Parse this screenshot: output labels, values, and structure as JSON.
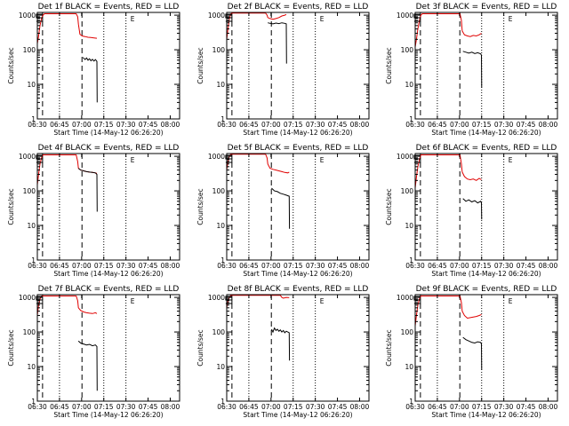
{
  "chart_data": {
    "type": "line",
    "xlabel": "Start Time (14-May-12 06:26:20)",
    "ylabel": "Counts/sec",
    "x_ticks": [
      "06:30",
      "06:45",
      "07:00",
      "07:15",
      "07:30",
      "07:45",
      "08:00"
    ],
    "x_range_min": [
      3.667,
      100
    ],
    "y_ticks": [
      "1",
      "10",
      "100",
      "1000"
    ],
    "y_scale": "log",
    "ylim": [
      1,
      1200
    ],
    "grid": false,
    "marker_text": "E",
    "dotted_lines_min": [
      3.667,
      18.667,
      48.667,
      63.667
    ],
    "dashed_lines_min": [
      7.2,
      33.9
    ],
    "panels": [
      {
        "title": "Det 1f BLACK = Events, RED = LLD",
        "s_marker_min": 4.8,
        "red": [
          [
            3.667,
            150
          ],
          [
            4.5,
            250
          ],
          [
            5.5,
            500
          ],
          [
            6.5,
            800
          ],
          [
            7.5,
            1000
          ],
          [
            8.5,
            1100
          ],
          [
            30,
            1100
          ],
          [
            31,
            900
          ],
          [
            31.5,
            550
          ],
          [
            32.5,
            280
          ],
          [
            34,
            250
          ],
          [
            36,
            240
          ],
          [
            38,
            230
          ],
          [
            40,
            225
          ],
          [
            42,
            220
          ],
          [
            44,
            215
          ]
        ],
        "black": [
          [
            34.5,
            60
          ],
          [
            36,
            52
          ],
          [
            37,
            58
          ],
          [
            38,
            50
          ],
          [
            39,
            55
          ],
          [
            40,
            48
          ],
          [
            41,
            53
          ],
          [
            42,
            47
          ],
          [
            43,
            52
          ],
          [
            44,
            46
          ],
          [
            44.2,
            3
          ]
        ]
      },
      {
        "title": "Det 2f BLACK = Events, RED = LLD",
        "s_marker_min": 4.8,
        "red": [
          [
            3.667,
            200
          ],
          [
            4.5,
            400
          ],
          [
            5.5,
            800
          ],
          [
            6.5,
            1100
          ],
          [
            7.5,
            1150
          ],
          [
            30,
            1150
          ],
          [
            31,
            1000
          ],
          [
            31.5,
            850
          ],
          [
            33,
            800
          ],
          [
            35,
            760
          ],
          [
            37,
            800
          ],
          [
            39,
            850
          ],
          [
            41,
            950
          ],
          [
            43,
            1000
          ],
          [
            44,
            1050
          ]
        ],
        "black": [
          [
            31.5,
            600
          ],
          [
            33,
            580
          ],
          [
            35,
            560
          ],
          [
            37,
            590
          ],
          [
            39,
            570
          ],
          [
            41,
            600
          ],
          [
            43,
            580
          ],
          [
            44,
            560
          ],
          [
            44.2,
            40
          ]
        ]
      },
      {
        "title": "Det 3f BLACK = Events, RED = LLD",
        "s_marker_min": 4.8,
        "red": [
          [
            3.667,
            120
          ],
          [
            4.5,
            200
          ],
          [
            5.5,
            400
          ],
          [
            6.5,
            700
          ],
          [
            7.5,
            1000
          ],
          [
            8.5,
            1100
          ],
          [
            34,
            1100
          ],
          [
            35,
            700
          ],
          [
            35.5,
            350
          ],
          [
            37,
            270
          ],
          [
            39,
            250
          ],
          [
            41,
            240
          ],
          [
            43,
            260
          ],
          [
            45,
            250
          ],
          [
            47,
            270
          ],
          [
            48.5,
            300
          ]
        ],
        "black": [
          [
            36,
            90
          ],
          [
            38,
            85
          ],
          [
            40,
            80
          ],
          [
            42,
            85
          ],
          [
            44,
            78
          ],
          [
            46,
            82
          ],
          [
            48,
            76
          ],
          [
            48.5,
            70
          ],
          [
            48.7,
            8
          ]
        ]
      },
      {
        "title": "Det 4f BLACK = Events, RED = LLD",
        "s_marker_min": 4.8,
        "red": [
          [
            3.667,
            150
          ],
          [
            4.5,
            300
          ],
          [
            5.5,
            600
          ],
          [
            6.5,
            900
          ],
          [
            7.5,
            1100
          ],
          [
            30,
            1100
          ],
          [
            31,
            700
          ],
          [
            31.5,
            450
          ],
          [
            33,
            400
          ],
          [
            35,
            380
          ],
          [
            37,
            360
          ],
          [
            39,
            350
          ],
          [
            41,
            340
          ],
          [
            43,
            330
          ],
          [
            44,
            320
          ]
        ],
        "black": [
          [
            31.5,
            450
          ],
          [
            33,
            400
          ],
          [
            35,
            380
          ],
          [
            37,
            360
          ],
          [
            39,
            350
          ],
          [
            41,
            340
          ],
          [
            43,
            330
          ],
          [
            44,
            300
          ],
          [
            44.2,
            25
          ]
        ]
      },
      {
        "title": "Det 5f BLACK = Events, RED = LLD",
        "s_marker_min": 4.8,
        "red": [
          [
            3.667,
            400
          ],
          [
            4.5,
            700
          ],
          [
            5.5,
            1000
          ],
          [
            6.5,
            1150
          ],
          [
            30,
            1150
          ],
          [
            31,
            900
          ],
          [
            31.5,
            600
          ],
          [
            33,
            450
          ],
          [
            35,
            420
          ],
          [
            37,
            400
          ],
          [
            39,
            380
          ],
          [
            41,
            360
          ],
          [
            43,
            340
          ],
          [
            45,
            330
          ],
          [
            46,
            350
          ]
        ],
        "black": [
          [
            34,
            120
          ],
          [
            36,
            100
          ],
          [
            38,
            95
          ],
          [
            40,
            85
          ],
          [
            42,
            80
          ],
          [
            44,
            75
          ],
          [
            46,
            70
          ],
          [
            46.2,
            8
          ]
        ]
      },
      {
        "title": "Det 6f BLACK = Events, RED = LLD",
        "s_marker_min": 4.8,
        "red": [
          [
            3.667,
            120
          ],
          [
            4.5,
            250
          ],
          [
            5.5,
            500
          ],
          [
            6.5,
            800
          ],
          [
            7.5,
            1100
          ],
          [
            34,
            1100
          ],
          [
            35,
            600
          ],
          [
            35.5,
            350
          ],
          [
            37,
            260
          ],
          [
            39,
            220
          ],
          [
            41,
            210
          ],
          [
            43,
            220
          ],
          [
            45,
            200
          ],
          [
            47,
            230
          ],
          [
            48.5,
            210
          ]
        ],
        "black": [
          [
            36,
            60
          ],
          [
            38,
            50
          ],
          [
            40,
            55
          ],
          [
            42,
            48
          ],
          [
            44,
            52
          ],
          [
            46,
            45
          ],
          [
            48,
            50
          ],
          [
            48.5,
            45
          ],
          [
            48.7,
            15
          ]
        ]
      },
      {
        "title": "Det 7f BLACK = Events, RED = LLD",
        "s_marker_min": 4.8,
        "red": [
          [
            3.667,
            300
          ],
          [
            4.5,
            600
          ],
          [
            5.5,
            900
          ],
          [
            6.5,
            1100
          ],
          [
            30,
            1100
          ],
          [
            31,
            800
          ],
          [
            31.5,
            500
          ],
          [
            33,
            420
          ],
          [
            35,
            380
          ],
          [
            37,
            360
          ],
          [
            39,
            350
          ],
          [
            41,
            340
          ],
          [
            43,
            360
          ],
          [
            44,
            340
          ]
        ],
        "black": [
          [
            31.5,
            55
          ],
          [
            33,
            48
          ],
          [
            35,
            45
          ],
          [
            37,
            42
          ],
          [
            39,
            44
          ],
          [
            41,
            40
          ],
          [
            43,
            42
          ],
          [
            44,
            38
          ],
          [
            44.2,
            2
          ]
        ]
      },
      {
        "title": "Det 8f BLACK = Events, RED = LLD",
        "s_marker_min": 4.8,
        "red": [
          [
            3.667,
            500
          ],
          [
            4.5,
            800
          ],
          [
            5.5,
            1000
          ],
          [
            6.5,
            1150
          ],
          [
            40,
            1150
          ],
          [
            41,
            1000
          ],
          [
            42,
            950
          ],
          [
            44,
            1000
          ],
          [
            46,
            980
          ]
        ],
        "black": [
          [
            34,
            120
          ],
          [
            35,
            100
          ],
          [
            36,
            130
          ],
          [
            37,
            110
          ],
          [
            38,
            120
          ],
          [
            39,
            105
          ],
          [
            40,
            115
          ],
          [
            41,
            100
          ],
          [
            42,
            110
          ],
          [
            43,
            95
          ],
          [
            44,
            105
          ],
          [
            45,
            100
          ],
          [
            46,
            95
          ],
          [
            46.2,
            15
          ]
        ]
      },
      {
        "title": "Det 9f BLACK = Events, RED = LLD",
        "s_marker_min": 4.8,
        "red": [
          [
            3.667,
            150
          ],
          [
            4.5,
            300
          ],
          [
            5.5,
            600
          ],
          [
            6.5,
            900
          ],
          [
            7.5,
            1100
          ],
          [
            34,
            1100
          ],
          [
            35,
            700
          ],
          [
            35.5,
            400
          ],
          [
            37,
            300
          ],
          [
            39,
            250
          ],
          [
            41,
            260
          ],
          [
            43,
            270
          ],
          [
            45,
            280
          ],
          [
            47,
            300
          ],
          [
            48.5,
            320
          ]
        ],
        "black": [
          [
            36,
            70
          ],
          [
            38,
            60
          ],
          [
            40,
            55
          ],
          [
            42,
            50
          ],
          [
            44,
            48
          ],
          [
            46,
            52
          ],
          [
            48,
            50
          ],
          [
            48.5,
            45
          ],
          [
            48.7,
            8
          ]
        ]
      }
    ]
  }
}
